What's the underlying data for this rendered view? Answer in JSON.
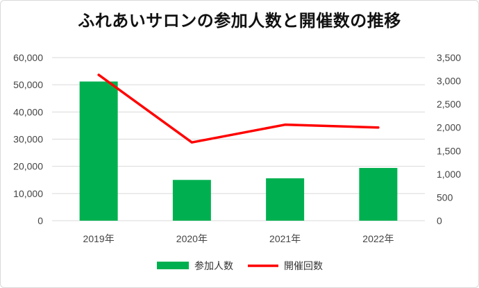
{
  "chart_data": {
    "type": "bar",
    "title": "ふれあいサロンの参加人数と開催数の推移",
    "categories": [
      "2019年",
      "2020年",
      "2021年",
      "2022年"
    ],
    "series": [
      {
        "name": "参加人数",
        "type": "bar",
        "axis": "left",
        "color": "#00b050",
        "values": [
          51200,
          15000,
          15600,
          19400
        ]
      },
      {
        "name": "開催回数",
        "type": "line",
        "axis": "right",
        "color": "#ff0000",
        "values": [
          3130,
          1680,
          2060,
          2000
        ]
      }
    ],
    "y_left": {
      "min": 0,
      "max": 60000,
      "step": 10000,
      "tick_labels": [
        "0",
        "10,000",
        "20,000",
        "30,000",
        "40,000",
        "50,000",
        "60,000"
      ]
    },
    "y_right": {
      "min": 0,
      "max": 3500,
      "step": 500,
      "tick_labels": [
        "0",
        "500",
        "1,000",
        "1,500",
        "2,000",
        "2,500",
        "3,000",
        "3,500"
      ]
    },
    "grid": true,
    "legend": "bottom"
  }
}
